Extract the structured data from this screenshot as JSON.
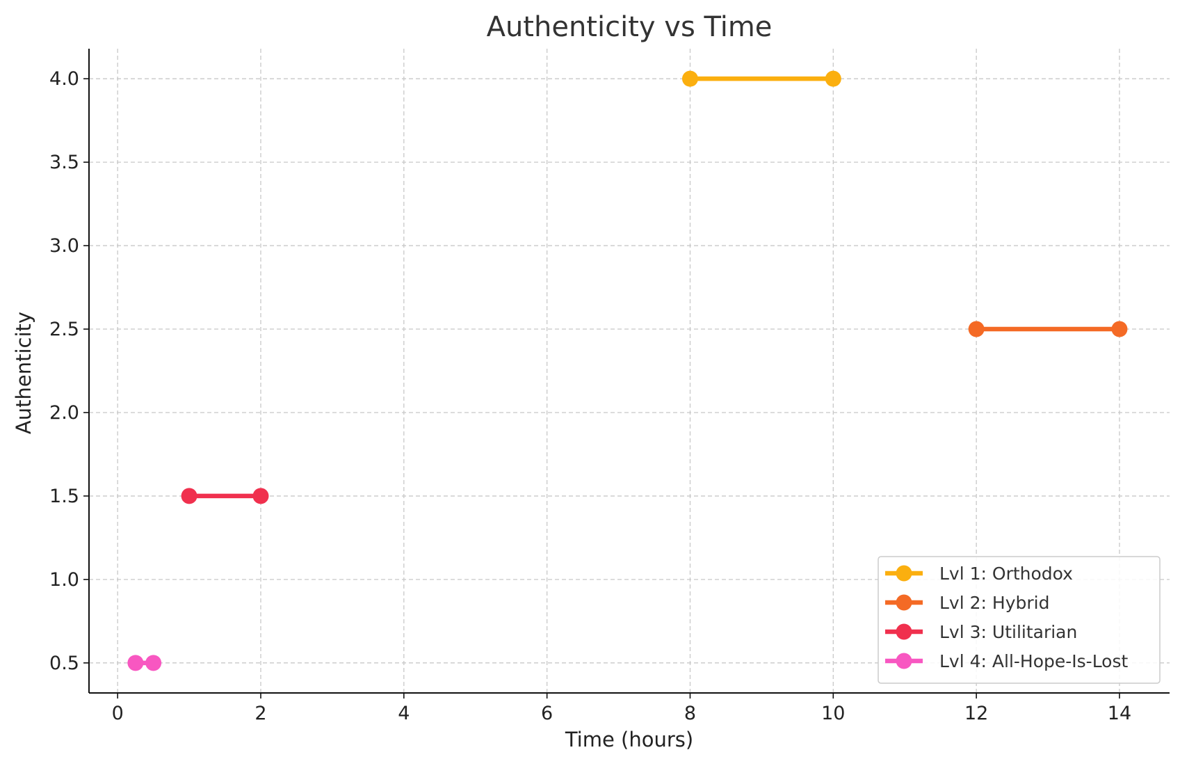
{
  "chart_data": {
    "type": "line",
    "title": "Authenticity vs Time",
    "xlabel": "Time (hours)",
    "ylabel": "Authenticity",
    "xlim": [
      -0.4,
      14.7
    ],
    "ylim": [
      0.32,
      4.18
    ],
    "xticks": [
      0,
      2,
      4,
      6,
      8,
      10,
      12,
      14
    ],
    "yticks": [
      0.5,
      1.0,
      1.5,
      2.0,
      2.5,
      3.0,
      3.5,
      4.0
    ],
    "xtick_labels": [
      "0",
      "2",
      "4",
      "6",
      "8",
      "10",
      "12",
      "14"
    ],
    "ytick_labels": [
      "0.5",
      "1.0",
      "1.5",
      "2.0",
      "2.5",
      "3.0",
      "3.5",
      "4.0"
    ],
    "grid": true,
    "legend_position": "bottom-right",
    "series": [
      {
        "name": "Lvl 1: Orthodox",
        "color": "#FBAF0F",
        "x": [
          8,
          10
        ],
        "y": [
          4.0,
          4.0
        ]
      },
      {
        "name": "Lvl 2: Hybrid",
        "color": "#F46A25",
        "x": [
          12,
          14
        ],
        "y": [
          2.5,
          2.5
        ]
      },
      {
        "name": "Lvl 3: Utilitarian",
        "color": "#F0304E",
        "x": [
          1,
          2
        ],
        "y": [
          1.5,
          1.5
        ]
      },
      {
        "name": "Lvl 4: All-Hope-Is-Lost",
        "color": "#F857C1",
        "x": [
          0.25,
          0.5
        ],
        "y": [
          0.5,
          0.5
        ]
      }
    ]
  }
}
